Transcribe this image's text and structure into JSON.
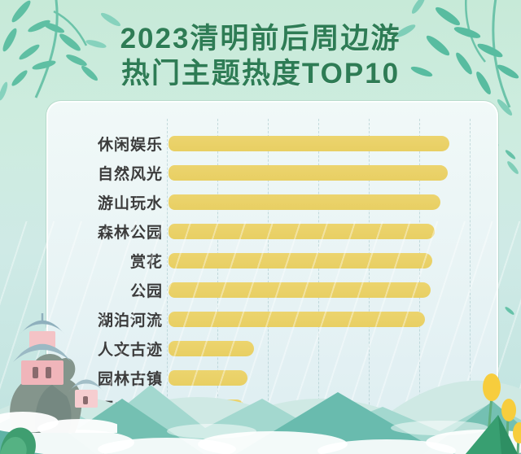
{
  "page": {
    "title_line1": "2023清明前后周边游",
    "title_line2": "热门主题热度TOP10"
  },
  "chart_data": {
    "type": "bar",
    "orientation": "horizontal",
    "title": "2023清明前后周边游 热门主题热度TOP10",
    "categories": [
      "休闲娱乐",
      "自然风光",
      "游山玩水",
      "森林公园",
      "赏花",
      "公园",
      "湖泊河流",
      "人文古迹",
      "园林古镇",
      "历史遗迹"
    ],
    "values": [
      100,
      99.4,
      96.8,
      94.8,
      93.9,
      93.3,
      91.3,
      30.4,
      28.1,
      27.0
    ],
    "value_unit": "relative heat index (longest bar = 100); no numeric axis labels shown",
    "xlabel": "",
    "ylabel": "",
    "axis_range": [
      0,
      107
    ],
    "grid": "7 dashed vertical gridlines, unlabeled",
    "legend": "none",
    "bar_color": "#ecd46e",
    "label_color": "#3c3c3c"
  },
  "colors": {
    "title_green": "#2e7c55",
    "background_mint": "#c9ebdb",
    "card_background": "#eef7f7",
    "bar_yellow": "#ecd46e",
    "leaf_teal": "#5fbfa3",
    "mountain_teal": "#74c0b2",
    "pavilion_pink": "#f3bdc0",
    "roof_blue_gray": "#9bb9c4",
    "flower_yellow": "#f7cd3d"
  },
  "decorations": {
    "top_left": "bamboo-branch",
    "top_right": "bamboo-branch",
    "scattered": "bamboo-leaves",
    "overlay": "rain-streaks",
    "bottom_left": "pavilion-on-rocky-hill",
    "bottom": "mountains-and-clouds",
    "bottom_right": "yellow-rapeseed-flowers"
  }
}
